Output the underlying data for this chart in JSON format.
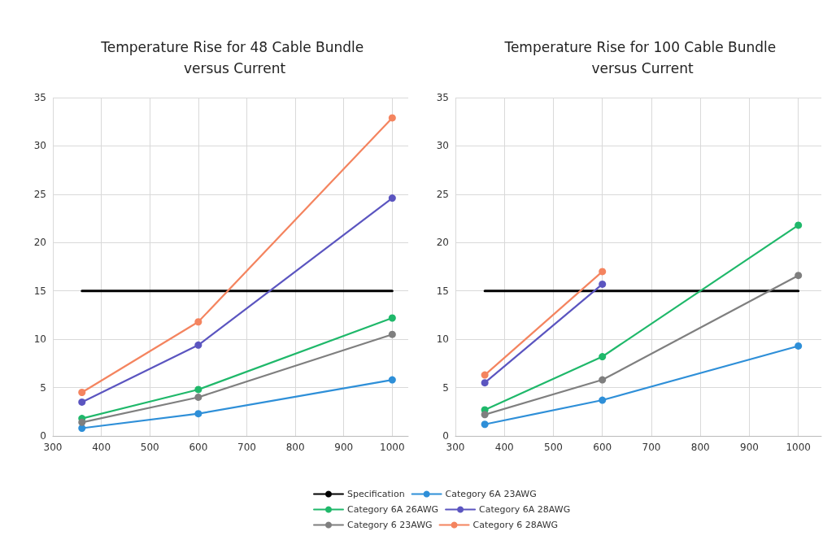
{
  "chart_data": [
    {
      "type": "line",
      "title": "Temperature Rise for 48 Cable Bundle versus Current",
      "x": [
        360,
        600,
        1000
      ],
      "xlim": [
        300,
        1033
      ],
      "xticks": [
        300,
        400,
        500,
        600,
        700,
        800,
        900,
        1000
      ],
      "ylim": [
        0,
        35
      ],
      "yticks": [
        0,
        5,
        10,
        15,
        20,
        25,
        30,
        35
      ],
      "grid": true,
      "legend": "bottom",
      "marker": "circle",
      "series": [
        {
          "name": "Specification",
          "color": "#000000",
          "marker": "none",
          "values": [
            15,
            15,
            15
          ]
        },
        {
          "name": "Category 6A 23AWG",
          "color": "#2e8fd8",
          "values": [
            0.8,
            2.3,
            5.8
          ]
        },
        {
          "name": "Category 6A 26AWG",
          "color": "#1fb86a",
          "values": [
            1.8,
            4.8,
            12.2
          ]
        },
        {
          "name": "Category 6A 28AWG",
          "color": "#5b55c0",
          "values": [
            3.5,
            9.4,
            24.6
          ]
        },
        {
          "name": "Category 6 23AWG",
          "color": "#7f7f7f",
          "values": [
            1.4,
            4.0,
            10.5
          ]
        },
        {
          "name": "Category 6 28AWG",
          "color": "#f4845f",
          "values": [
            4.5,
            11.8,
            32.9
          ]
        }
      ]
    },
    {
      "type": "line",
      "title": "Temperature Rise for 100 Cable Bundle versus Current",
      "x": [
        360,
        600,
        1000
      ],
      "xlim": [
        300,
        1047
      ],
      "xticks": [
        300,
        400,
        500,
        600,
        700,
        800,
        900,
        1000
      ],
      "ylim": [
        0,
        35
      ],
      "yticks": [
        0,
        5,
        10,
        15,
        20,
        25,
        30,
        35
      ],
      "grid": true,
      "legend": "bottom",
      "marker": "circle",
      "series": [
        {
          "name": "Specification",
          "color": "#000000",
          "marker": "none",
          "values": [
            15,
            15,
            15
          ]
        },
        {
          "name": "Category 6A 23AWG",
          "color": "#2e8fd8",
          "values": [
            1.2,
            3.7,
            9.3
          ]
        },
        {
          "name": "Category 6A 26AWG",
          "color": "#1fb86a",
          "values": [
            2.7,
            8.2,
            21.8
          ]
        },
        {
          "name": "Category 6A 28AWG",
          "color": "#5b55c0",
          "values": [
            5.5,
            15.7,
            null
          ]
        },
        {
          "name": "Category 6 23AWG",
          "color": "#7f7f7f",
          "values": [
            2.2,
            5.8,
            16.6
          ]
        },
        {
          "name": "Category 6 28AWG",
          "color": "#f4845f",
          "values": [
            6.3,
            17.0,
            null
          ]
        }
      ]
    }
  ]
}
